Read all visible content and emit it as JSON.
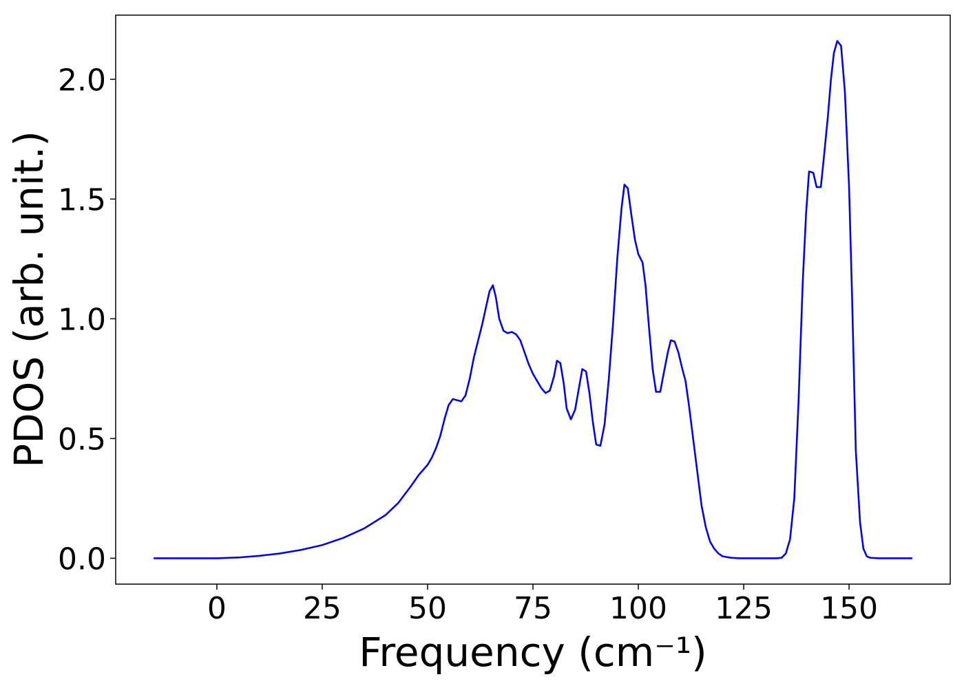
{
  "chart_data": {
    "type": "line",
    "xlabel": "Frequency (cm⁻¹)",
    "ylabel": "PDOS (arb. unit.)",
    "x": [
      -15,
      0,
      5,
      10,
      15,
      20,
      25,
      30,
      35,
      40,
      43,
      46,
      48,
      50,
      51,
      52,
      53,
      54,
      55,
      56,
      58,
      59,
      60,
      61,
      62,
      63,
      64,
      64.7,
      65.5,
      66.2,
      67,
      68,
      69,
      70,
      71,
      72,
      73,
      74,
      75,
      76,
      77,
      78,
      79,
      80,
      80.7,
      81.5,
      82.3,
      83,
      84,
      85,
      86,
      86.7,
      87.6,
      88.4,
      89.2,
      90,
      91,
      92,
      93,
      94,
      95,
      96,
      96.7,
      97.5,
      98.3,
      99.2,
      100,
      101,
      101.7,
      102.5,
      103.4,
      104.2,
      105.2,
      106,
      107,
      107.7,
      108.6,
      109.5,
      110.3,
      111.2,
      112,
      113,
      114,
      115,
      116,
      117,
      118,
      119,
      120,
      122,
      124,
      133,
      134,
      135,
      136,
      137,
      138,
      139,
      139.8,
      140.5,
      141.5,
      142.3,
      143.3,
      144,
      145,
      145.7,
      146.4,
      147.2,
      148.1,
      149,
      150,
      150.7,
      151.6,
      152.6,
      153.4,
      154.2,
      155,
      157,
      165
    ],
    "series": [
      {
        "color": "#0000ff",
        "values": [
          0,
          0,
          0.003,
          0.01,
          0.02,
          0.035,
          0.055,
          0.085,
          0.125,
          0.18,
          0.23,
          0.3,
          0.35,
          0.39,
          0.42,
          0.46,
          0.51,
          0.58,
          0.64,
          0.665,
          0.655,
          0.68,
          0.75,
          0.84,
          0.91,
          0.98,
          1.06,
          1.115,
          1.14,
          1.09,
          1.0,
          0.95,
          0.94,
          0.945,
          0.935,
          0.91,
          0.86,
          0.81,
          0.77,
          0.74,
          0.71,
          0.69,
          0.7,
          0.76,
          0.825,
          0.815,
          0.73,
          0.625,
          0.58,
          0.62,
          0.72,
          0.79,
          0.78,
          0.69,
          0.57,
          0.475,
          0.47,
          0.56,
          0.75,
          0.98,
          1.25,
          1.46,
          1.56,
          1.545,
          1.44,
          1.33,
          1.27,
          1.235,
          1.14,
          0.97,
          0.79,
          0.695,
          0.695,
          0.77,
          0.86,
          0.91,
          0.905,
          0.86,
          0.8,
          0.74,
          0.64,
          0.5,
          0.36,
          0.22,
          0.13,
          0.07,
          0.04,
          0.02,
          0.008,
          0.002,
          0,
          0,
          0.002,
          0.02,
          0.08,
          0.25,
          0.65,
          1.15,
          1.44,
          1.615,
          1.61,
          1.55,
          1.55,
          1.67,
          1.85,
          2.0,
          2.11,
          2.16,
          2.14,
          1.95,
          1.55,
          1.1,
          0.45,
          0.15,
          0.04,
          0.008,
          0.002,
          0,
          0
        ]
      }
    ],
    "xlim": [
      -24,
      174
    ],
    "xticks": [
      0,
      25,
      50,
      75,
      100,
      125,
      150
    ],
    "ylim": [
      -0.108,
      2.268
    ],
    "yticks": [
      {
        "value": 0,
        "label": "0.0"
      },
      0.5,
      {
        "value": 1,
        "label": "1.0"
      },
      1.5,
      {
        "value": 2,
        "label": "2.0"
      }
    ]
  }
}
